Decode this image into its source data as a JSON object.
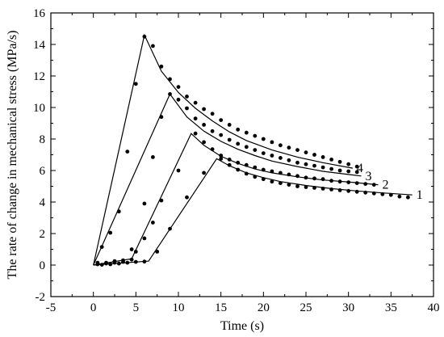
{
  "chart_data": {
    "type": "line",
    "xlabel": "Time (s)",
    "ylabel": "The rate of change in mechanical stress (MPa/s)",
    "xlim": [
      -5,
      40
    ],
    "ylim": [
      -2,
      16
    ],
    "xticks": [
      -5,
      0,
      5,
      10,
      15,
      20,
      25,
      30,
      35,
      40
    ],
    "yticks": [
      -2,
      0,
      2,
      4,
      6,
      8,
      10,
      12,
      14,
      16
    ],
    "grid": false,
    "series": [
      {
        "name": "1",
        "line": [
          [
            0,
            0
          ],
          [
            6.5,
            0.25
          ],
          [
            14.5,
            6.75
          ],
          [
            16,
            6.3
          ],
          [
            18,
            5.85
          ],
          [
            20,
            5.55
          ],
          [
            22,
            5.3
          ],
          [
            25,
            5.05
          ],
          [
            28,
            4.85
          ],
          [
            31,
            4.7
          ],
          [
            34,
            4.58
          ],
          [
            37.5,
            4.45
          ]
        ],
        "points": [
          [
            1,
            0.02
          ],
          [
            2,
            0.05
          ],
          [
            3,
            0.1
          ],
          [
            4,
            0.15
          ],
          [
            5,
            0.2
          ],
          [
            6,
            0.22
          ],
          [
            7.5,
            0.85
          ],
          [
            9,
            2.3
          ],
          [
            11,
            4.3
          ],
          [
            13,
            5.85
          ],
          [
            15,
            6.75
          ],
          [
            16,
            6.35
          ],
          [
            17,
            6.05
          ],
          [
            18,
            5.8
          ],
          [
            19,
            5.6
          ],
          [
            20,
            5.45
          ],
          [
            21,
            5.3
          ],
          [
            22,
            5.2
          ],
          [
            23,
            5.1
          ],
          [
            24,
            5.0
          ],
          [
            25,
            4.95
          ],
          [
            26,
            4.9
          ],
          [
            27,
            4.85
          ],
          [
            28,
            4.8
          ],
          [
            29,
            4.75
          ],
          [
            30,
            4.7
          ],
          [
            31,
            4.65
          ],
          [
            32,
            4.6
          ],
          [
            33,
            4.55
          ],
          [
            34,
            4.5
          ],
          [
            35,
            4.45
          ],
          [
            36,
            4.35
          ],
          [
            37,
            4.3
          ]
        ]
      },
      {
        "name": "2",
        "line": [
          [
            0,
            0
          ],
          [
            4.5,
            0.4
          ],
          [
            11.5,
            8.35
          ],
          [
            13,
            7.6
          ],
          [
            15,
            6.9
          ],
          [
            17,
            6.45
          ],
          [
            19,
            6.1
          ],
          [
            21,
            5.85
          ],
          [
            24,
            5.6
          ],
          [
            27,
            5.4
          ],
          [
            30.5,
            5.25
          ],
          [
            33.5,
            5.1
          ]
        ],
        "points": [
          [
            0.5,
            0.05
          ],
          [
            1.5,
            0.1
          ],
          [
            2.5,
            0.15
          ],
          [
            3.5,
            0.2
          ],
          [
            4.5,
            0.35
          ],
          [
            5,
            0.85
          ],
          [
            6,
            1.7
          ],
          [
            7,
            2.7
          ],
          [
            8,
            4.1
          ],
          [
            10,
            6.0
          ],
          [
            12,
            8.35
          ],
          [
            13,
            7.8
          ],
          [
            14,
            7.35
          ],
          [
            15,
            6.95
          ],
          [
            16,
            6.7
          ],
          [
            17,
            6.5
          ],
          [
            18,
            6.35
          ],
          [
            19,
            6.2
          ],
          [
            20,
            6.05
          ],
          [
            21,
            5.95
          ],
          [
            22,
            5.85
          ],
          [
            23,
            5.75
          ],
          [
            24,
            5.65
          ],
          [
            25,
            5.55
          ],
          [
            26,
            5.5
          ],
          [
            27,
            5.45
          ],
          [
            28,
            5.35
          ],
          [
            29,
            5.3
          ],
          [
            30,
            5.25
          ],
          [
            31,
            5.2
          ],
          [
            32,
            5.15
          ],
          [
            33,
            5.1
          ]
        ]
      },
      {
        "name": "3",
        "line": [
          [
            0,
            0
          ],
          [
            9,
            10.85
          ],
          [
            11,
            9.4
          ],
          [
            13,
            8.5
          ],
          [
            15,
            7.85
          ],
          [
            17,
            7.35
          ],
          [
            19,
            6.95
          ],
          [
            21,
            6.6
          ],
          [
            24,
            6.25
          ],
          [
            27,
            5.95
          ],
          [
            30,
            5.75
          ],
          [
            31.5,
            5.65
          ]
        ],
        "points": [
          [
            0.5,
            0.1
          ],
          [
            1.5,
            0.15
          ],
          [
            2.5,
            0.25
          ],
          [
            3.5,
            0.3
          ],
          [
            4.5,
            1.0
          ],
          [
            6,
            3.9
          ],
          [
            7,
            6.85
          ],
          [
            8,
            9.4
          ],
          [
            9,
            10.85
          ],
          [
            10,
            10.5
          ],
          [
            11,
            9.95
          ],
          [
            12,
            9.3
          ],
          [
            13,
            8.9
          ],
          [
            14,
            8.5
          ],
          [
            15,
            8.25
          ],
          [
            16,
            7.95
          ],
          [
            17,
            7.7
          ],
          [
            18,
            7.5
          ],
          [
            19,
            7.3
          ],
          [
            20,
            7.1
          ],
          [
            21,
            6.95
          ],
          [
            22,
            6.8
          ],
          [
            23,
            6.65
          ],
          [
            24,
            6.5
          ],
          [
            25,
            6.4
          ],
          [
            26,
            6.3
          ],
          [
            27,
            6.2
          ],
          [
            28,
            6.1
          ],
          [
            29,
            6.0
          ],
          [
            30,
            5.95
          ],
          [
            31,
            5.9
          ]
        ]
      },
      {
        "name": "4",
        "line": [
          [
            0,
            0
          ],
          [
            6,
            14.6
          ],
          [
            8,
            12.3
          ],
          [
            10,
            10.95
          ],
          [
            12,
            9.95
          ],
          [
            14,
            9.15
          ],
          [
            16,
            8.45
          ],
          [
            18,
            7.9
          ],
          [
            21,
            7.3
          ],
          [
            24,
            6.85
          ],
          [
            27,
            6.5
          ],
          [
            30.5,
            6.15
          ]
        ],
        "points": [
          [
            0.5,
            0.15
          ],
          [
            1,
            1.15
          ],
          [
            2,
            2.05
          ],
          [
            3,
            3.4
          ],
          [
            4,
            7.2
          ],
          [
            5,
            11.5
          ],
          [
            6,
            14.5
          ],
          [
            7,
            13.9
          ],
          [
            8,
            12.6
          ],
          [
            9,
            11.8
          ],
          [
            10,
            11.3
          ],
          [
            11,
            10.7
          ],
          [
            12,
            10.3
          ],
          [
            13,
            9.9
          ],
          [
            14,
            9.6
          ],
          [
            15,
            9.2
          ],
          [
            16,
            8.9
          ],
          [
            17,
            8.6
          ],
          [
            18,
            8.4
          ],
          [
            19,
            8.2
          ],
          [
            20,
            8.0
          ],
          [
            21,
            7.8
          ],
          [
            22,
            7.6
          ],
          [
            23,
            7.45
          ],
          [
            24,
            7.3
          ],
          [
            25,
            7.15
          ],
          [
            26,
            7.0
          ],
          [
            27,
            6.85
          ],
          [
            28,
            6.7
          ],
          [
            29,
            6.55
          ],
          [
            30,
            6.4
          ],
          [
            31,
            6.25
          ]
        ]
      }
    ]
  }
}
